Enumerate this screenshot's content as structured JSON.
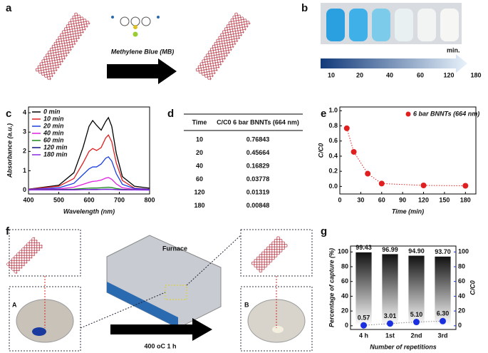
{
  "panel_labels": [
    "a",
    "b",
    "c",
    "d",
    "e",
    "f",
    "g"
  ],
  "a": {
    "caption": "Methylene Blue (MB)"
  },
  "b": {
    "unit": "min.",
    "times": [
      "10",
      "20",
      "40",
      "60",
      "120",
      "180"
    ]
  },
  "d": {
    "table": {
      "header": [
        "Time",
        "C/C0 6 bar BNNTs (664 nm)"
      ],
      "rows": [
        [
          10,
          0.76843
        ],
        [
          20,
          0.45664
        ],
        [
          40,
          0.16829
        ],
        [
          60,
          0.03778
        ],
        [
          120,
          0.01319
        ],
        [
          180,
          0.00848
        ]
      ]
    }
  },
  "f": {
    "furnace": "Furnace",
    "condition": "400 oC 1 h",
    "left_inset": "A",
    "right_inset": "B"
  },
  "chart_data": [
    {
      "type": "line",
      "x_label": "Wavelength (nm)",
      "y_label": "Absorbance (a.u.)",
      "x": [
        400,
        500,
        550,
        580,
        600,
        612,
        625,
        640,
        655,
        664,
        675,
        690,
        710,
        750,
        800
      ],
      "xlim": [
        400,
        800
      ],
      "xticks": [
        400,
        500,
        600,
        700,
        800
      ],
      "ylim": [
        -0.2,
        4.3
      ],
      "yticks": [
        0,
        1,
        2,
        3,
        4
      ],
      "series": [
        {
          "name": "0 min",
          "color": "#000000",
          "values": [
            0.05,
            0.25,
            0.9,
            2.2,
            3.3,
            3.6,
            3.35,
            3.1,
            3.55,
            3.75,
            3.3,
            1.9,
            0.7,
            0.2,
            0.1
          ]
        },
        {
          "name": "10 min",
          "color": "#e02020",
          "values": [
            0.05,
            0.2,
            0.6,
            1.4,
            2.0,
            2.15,
            2.05,
            2.2,
            2.7,
            2.85,
            2.5,
            1.4,
            0.5,
            0.1,
            0.05
          ]
        },
        {
          "name": "20 min",
          "color": "#1a3fe0",
          "values": [
            0.04,
            0.12,
            0.35,
            0.8,
            1.1,
            1.2,
            1.2,
            1.35,
            1.65,
            1.72,
            1.5,
            0.85,
            0.3,
            0.08,
            0.04
          ]
        },
        {
          "name": "40 min",
          "color": "#e020e0",
          "values": [
            0.03,
            0.06,
            0.15,
            0.3,
            0.4,
            0.45,
            0.47,
            0.52,
            0.62,
            0.65,
            0.56,
            0.32,
            0.12,
            0.04,
            0.02
          ]
        },
        {
          "name": "60 min",
          "color": "#1a8a1a",
          "values": [
            0.02,
            0.03,
            0.05,
            0.08,
            0.1,
            0.11,
            0.11,
            0.12,
            0.14,
            0.15,
            0.13,
            0.08,
            0.04,
            0.02,
            0.01
          ]
        },
        {
          "name": "120 min",
          "color": "#101080",
          "values": [
            0.01,
            0.02,
            0.02,
            0.03,
            0.03,
            0.04,
            0.04,
            0.04,
            0.05,
            0.05,
            0.04,
            0.03,
            0.02,
            0.01,
            0.01
          ]
        },
        {
          "name": "180 min",
          "color": "#8a2be2",
          "values": [
            0.01,
            0.01,
            0.01,
            0.02,
            0.02,
            0.02,
            0.02,
            0.03,
            0.03,
            0.03,
            0.03,
            0.02,
            0.01,
            0.01,
            0
          ]
        }
      ]
    },
    {
      "type": "scatter",
      "x_label": "Time (min)",
      "y_label": "C/C0",
      "x": [
        10,
        20,
        40,
        60,
        120,
        180
      ],
      "xlim": [
        0,
        195
      ],
      "xticks": [
        0,
        30,
        60,
        90,
        120,
        150,
        180
      ],
      "ylim": [
        -0.1,
        1.05
      ],
      "yticks": [
        {
          "value": 0,
          "label": "0.0"
        },
        {
          "value": 0.2,
          "label": "0.2"
        },
        {
          "value": 0.4,
          "label": "0.4"
        },
        {
          "value": 0.6,
          "label": "0.6"
        },
        {
          "value": 0.8,
          "label": "0.8"
        },
        {
          "value": 1,
          "label": "1.0"
        }
      ],
      "series": [
        {
          "name": "6 bar BNNTs (664 nm)",
          "color": "#e02020",
          "values": [
            0.76843,
            0.45664,
            0.16829,
            0.03778,
            0.01319,
            0.00848
          ]
        }
      ]
    },
    {
      "type": "bar",
      "x_label": "Number of repetitions",
      "y_label": "Percentage of capture (%)",
      "y2_label": "C/C0",
      "categories": [
        "4 h",
        "1st",
        "2nd",
        "3rd"
      ],
      "ylim": [
        -5,
        108
      ],
      "yticks": [
        0,
        20,
        40,
        60,
        80,
        100
      ],
      "y2lim": [
        -5,
        108
      ],
      "y2ticks": [
        0,
        20,
        40,
        60,
        80,
        100
      ],
      "series": [
        {
          "color": "#000000",
          "values": [
            99.43,
            96.99,
            94.9,
            93.7
          ],
          "value_labels": [
            "99.43",
            "96.99",
            "94.90",
            "93.70"
          ]
        },
        {
          "color": "#1a2fe0",
          "axis": "y2",
          "values": [
            0.57,
            3.01,
            5.1,
            6.3
          ],
          "value_labels": [
            "0.57",
            "3.01",
            "5.10",
            "6.30"
          ]
        }
      ]
    }
  ]
}
